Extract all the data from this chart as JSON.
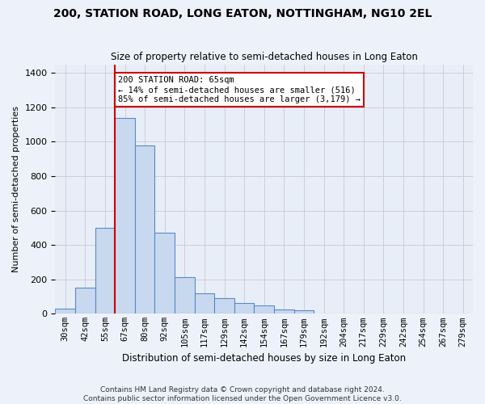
{
  "title": "200, STATION ROAD, LONG EATON, NOTTINGHAM, NG10 2EL",
  "subtitle": "Size of property relative to semi-detached houses in Long Eaton",
  "xlabel_bottom": "Distribution of semi-detached houses by size in Long Eaton",
  "ylabel": "Number of semi-detached properties",
  "footnote": "Contains HM Land Registry data © Crown copyright and database right 2024.\nContains public sector information licensed under the Open Government Licence v3.0.",
  "bar_color": "#c8d8ef",
  "bar_edge_color": "#5a8ac6",
  "grid_color": "#c8c8d0",
  "background_color": "#e8eef8",
  "fig_background_color": "#edf2fa",
  "annotation_box_color": "#cc0000",
  "vline_color": "#cc0000",
  "categories": [
    "30sqm",
    "42sqm",
    "55sqm",
    "67sqm",
    "80sqm",
    "92sqm",
    "105sqm",
    "117sqm",
    "129sqm",
    "142sqm",
    "154sqm",
    "167sqm",
    "179sqm",
    "192sqm",
    "204sqm",
    "217sqm",
    "229sqm",
    "242sqm",
    "254sqm",
    "267sqm",
    "279sqm"
  ],
  "values": [
    30,
    150,
    500,
    1140,
    980,
    470,
    215,
    120,
    90,
    65,
    50,
    25,
    20,
    0,
    0,
    0,
    0,
    0,
    0,
    0,
    0
  ],
  "ylim": [
    0,
    1450
  ],
  "yticks": [
    0,
    200,
    400,
    600,
    800,
    1000,
    1200,
    1400
  ],
  "vline_bin_index": 3,
  "annotation_text": "200 STATION ROAD: 65sqm\n← 14% of semi-detached houses are smaller (516)\n85% of semi-detached houses are larger (3,179) →"
}
